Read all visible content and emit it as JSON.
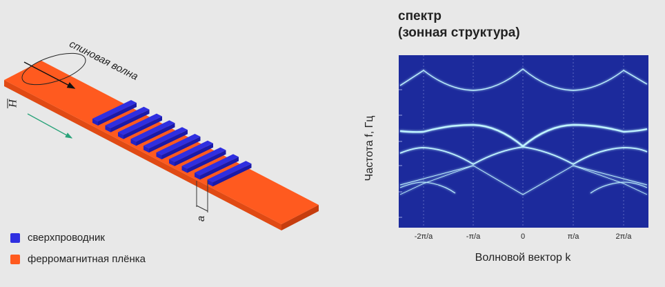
{
  "diagram": {
    "wave_label": "спиновая волна",
    "field_label": "H",
    "period_label": "a"
  },
  "legend": [
    {
      "label": "сверхпроводник",
      "color": "#2f2fe0"
    },
    {
      "label": "ферромагнитная плёнка",
      "color": "#ff5a1f"
    }
  ],
  "spectrum": {
    "title": [
      "спектр",
      "(зонная структура)"
    ],
    "x_label": "Волновой вектор k",
    "y_label": "Частота f, Гц",
    "xticks": [
      "-2π/a",
      "-π/a",
      "0",
      "π/a",
      "2π/a"
    ]
  }
}
